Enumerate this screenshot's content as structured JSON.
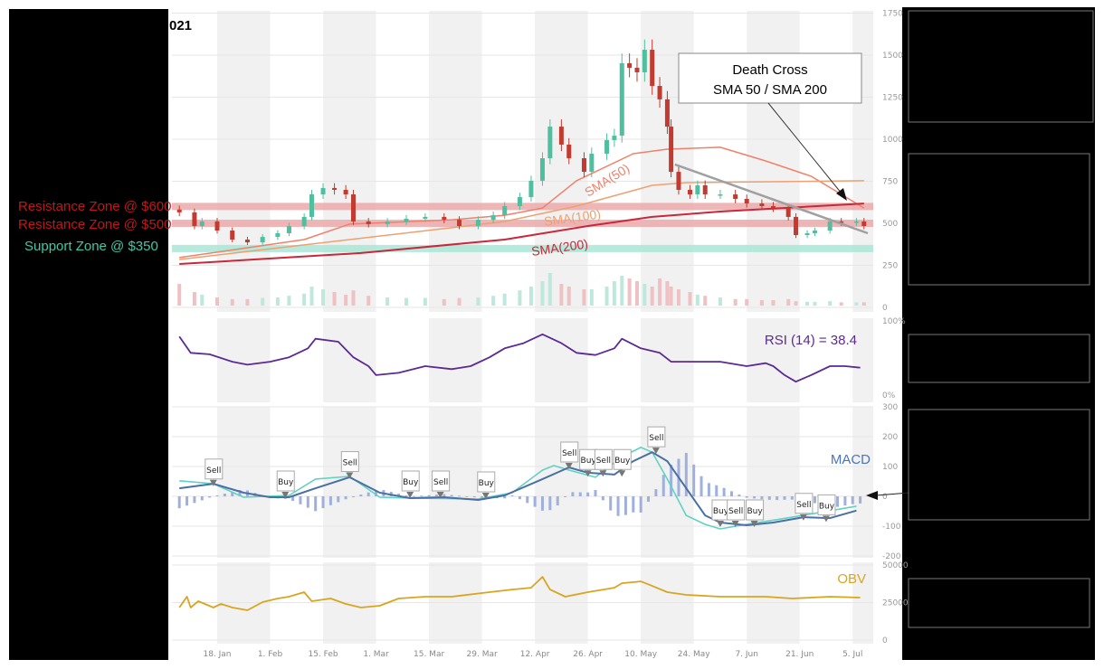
{
  "title": "021",
  "colors": {
    "up": "#4fbf9f",
    "down": "#c23a30",
    "resistance": "#c0161a",
    "support": "#3ec9a7",
    "sma50": "#f0806a",
    "sma100": "#eea070",
    "sma200": "#c8283a",
    "trend": "#a0a0a0",
    "rsi": "#5b2a93",
    "macd": "#4a6fa5",
    "signal": "#5fd3c0",
    "hist": "#9fb0dc",
    "obv": "#d9a520"
  },
  "annotations": {
    "resistance_600": "Resistance Zone @ $600",
    "resistance_500": "Resistance Zone @ $500",
    "support_350": "Support Zone @ $350",
    "death_cross_line1": "Death Cross",
    "death_cross_line2": "SMA 50 / SMA 200",
    "sma50_label": "SMA(50)",
    "sma100_label": "SMA(100)",
    "sma200_label": "SMA(200)",
    "rsi_label": "RSI (14) = 38.4",
    "macd_label": "MACD",
    "obv_label": "OBV"
  },
  "chart_data": [
    {
      "type": "candlestick",
      "panel": "price",
      "ylim": [
        0,
        1750
      ],
      "yticks": [
        "1750",
        "1500",
        "1250",
        "1000",
        "750",
        "500",
        "250",
        "0"
      ],
      "xticks": [
        "18. Jan",
        "1. Feb",
        "15. Feb",
        "1. Mar",
        "15. Mar",
        "29. Mar",
        "12. Apr",
        "26. Apr",
        "10. May",
        "24. May",
        "7. Jun",
        "21. Jun",
        "5. Jul"
      ],
      "xtick_dates": [
        "01-18",
        "02-01",
        "02-15",
        "03-01",
        "03-15",
        "03-29",
        "04-12",
        "04-26",
        "05-10",
        "05-24",
        "06-07",
        "06-21",
        "07-05"
      ],
      "grid": true,
      "close": [
        [
          "01-08",
          565
        ],
        [
          "01-12",
          484
        ],
        [
          "01-14",
          511
        ],
        [
          "01-18",
          457
        ],
        [
          "01-22",
          403
        ],
        [
          "01-26",
          387
        ],
        [
          "01-30",
          419
        ],
        [
          "02-03",
          441
        ],
        [
          "02-06",
          484
        ],
        [
          "02-10",
          538
        ],
        [
          "02-12",
          672
        ],
        [
          "02-15",
          710
        ],
        [
          "02-18",
          699
        ],
        [
          "02-21",
          672
        ],
        [
          "02-23",
          511
        ],
        [
          "02-27",
          495
        ],
        [
          "03-04",
          511
        ],
        [
          "03-09",
          527
        ],
        [
          "03-14",
          538
        ],
        [
          "03-19",
          521
        ],
        [
          "03-23",
          484
        ],
        [
          "03-28",
          521
        ],
        [
          "04-01",
          548
        ],
        [
          "04-04",
          602
        ],
        [
          "04-08",
          656
        ],
        [
          "04-11",
          753
        ],
        [
          "04-14",
          887
        ],
        [
          "04-16",
          1075
        ],
        [
          "04-19",
          968
        ],
        [
          "04-21",
          887
        ],
        [
          "04-25",
          806
        ],
        [
          "04-27",
          914
        ],
        [
          "05-01",
          995
        ],
        [
          "05-03",
          1021
        ],
        [
          "05-05",
          1452
        ],
        [
          "05-07",
          1425
        ],
        [
          "05-09",
          1398
        ],
        [
          "05-11",
          1532
        ],
        [
          "05-13",
          1317
        ],
        [
          "05-15",
          1237
        ],
        [
          "05-17",
          1075
        ],
        [
          "05-18",
          806
        ],
        [
          "05-20",
          699
        ],
        [
          "05-23",
          672
        ],
        [
          "05-25",
          726
        ],
        [
          "05-27",
          672
        ],
        [
          "05-31",
          672
        ],
        [
          "06-04",
          645
        ],
        [
          "06-07",
          618
        ],
        [
          "06-11",
          602
        ],
        [
          "06-14",
          591
        ],
        [
          "06-18",
          538
        ],
        [
          "06-20",
          430
        ],
        [
          "06-23",
          441
        ],
        [
          "06-25",
          457
        ],
        [
          "06-29",
          511
        ],
        [
          "07-02",
          505
        ],
        [
          "07-06",
          511
        ],
        [
          "07-08",
          484
        ]
      ],
      "volume": [
        40,
        25,
        20,
        15,
        12,
        12,
        14,
        15,
        18,
        22,
        35,
        30,
        25,
        20,
        28,
        18,
        15,
        14,
        14,
        12,
        14,
        15,
        18,
        22,
        28,
        35,
        45,
        60,
        40,
        35,
        30,
        30,
        35,
        45,
        55,
        50,
        45,
        40,
        35,
        50,
        45,
        35,
        30,
        25,
        20,
        18,
        15,
        12,
        12,
        10,
        10,
        12,
        8,
        7,
        7,
        8,
        6,
        6,
        6,
        6
      ],
      "zones": [
        {
          "label": "Resistance Zone @ $600",
          "value": 600,
          "kind": "resistance"
        },
        {
          "label": "Resistance Zone @ $500",
          "value": 500,
          "kind": "resistance"
        },
        {
          "label": "Support Zone @ $350",
          "value": 350,
          "kind": "support"
        }
      ],
      "series": [
        {
          "name": "SMA(50)",
          "points": [
            [
              "01-08",
              296
            ],
            [
              "02-10",
              403
            ],
            [
              "02-22",
              495
            ],
            [
              "03-21",
              521
            ],
            [
              "04-04",
              548
            ],
            [
              "04-14",
              591
            ],
            [
              "04-23",
              753
            ],
            [
              "05-08",
              914
            ],
            [
              "05-17",
              941
            ],
            [
              "05-31",
              952
            ],
            [
              "06-12",
              871
            ],
            [
              "06-24",
              780
            ],
            [
              "07-02",
              672
            ],
            [
              "07-08",
              591
            ]
          ]
        },
        {
          "name": "SMA(100)",
          "points": [
            [
              "01-08",
              285
            ],
            [
              "02-22",
              403
            ],
            [
              "04-04",
              511
            ],
            [
              "04-23",
              602
            ],
            [
              "05-13",
              726
            ],
            [
              "05-22",
              742
            ],
            [
              "07-08",
              753
            ]
          ]
        },
        {
          "name": "SMA(200)",
          "points": [
            [
              "01-08",
              258
            ],
            [
              "02-25",
              323
            ],
            [
              "04-04",
              403
            ],
            [
              "04-26",
              484
            ],
            [
              "05-13",
              538
            ],
            [
              "05-31",
              570
            ],
            [
              "07-08",
              618
            ]
          ]
        }
      ],
      "trendline": [
        [
          "05-19",
          850
        ],
        [
          "07-09",
          441
        ]
      ]
    },
    {
      "type": "line",
      "panel": "rsi",
      "ylim": [
        0,
        100
      ],
      "yticks": [
        "100%",
        "0%"
      ],
      "series": [
        {
          "name": "RSI (14)",
          "points": [
            [
              "01-08",
              79
            ],
            [
              "01-11",
              57
            ],
            [
              "01-16",
              55
            ],
            [
              "01-22",
              45
            ],
            [
              "01-26",
              41
            ],
            [
              "02-01",
              45
            ],
            [
              "02-06",
              51
            ],
            [
              "02-11",
              63
            ],
            [
              "02-13",
              76
            ],
            [
              "02-19",
              72
            ],
            [
              "02-23",
              51
            ],
            [
              "02-27",
              39
            ],
            [
              "03-01",
              27
            ],
            [
              "03-07",
              30
            ],
            [
              "03-14",
              39
            ],
            [
              "03-21",
              35
            ],
            [
              "03-26",
              39
            ],
            [
              "03-31",
              51
            ],
            [
              "04-04",
              63
            ],
            [
              "04-09",
              70
            ],
            [
              "04-14",
              82
            ],
            [
              "04-19",
              70
            ],
            [
              "04-23",
              57
            ],
            [
              "04-28",
              54
            ],
            [
              "05-03",
              63
            ],
            [
              "05-05",
              76
            ],
            [
              "05-10",
              63
            ],
            [
              "05-15",
              57
            ],
            [
              "05-18",
              45
            ],
            [
              "05-22",
              45
            ],
            [
              "05-31",
              45
            ],
            [
              "06-07",
              39
            ],
            [
              "06-12",
              43
            ],
            [
              "06-14",
              39
            ],
            [
              "06-17",
              27
            ],
            [
              "06-20",
              18
            ],
            [
              "06-24",
              27
            ],
            [
              "06-29",
              39
            ],
            [
              "07-03",
              39
            ],
            [
              "07-07",
              37
            ]
          ]
        }
      ]
    },
    {
      "type": "line",
      "panel": "macd",
      "ylim": [
        -200,
        300
      ],
      "yticks": [
        "300",
        "200",
        "100",
        "0",
        "-100",
        "-200"
      ],
      "series": [
        {
          "name": "MACD",
          "points": [
            [
              "01-08",
              27
            ],
            [
              "01-17",
              42
            ],
            [
              "01-25",
              12
            ],
            [
              "02-01",
              -3
            ],
            [
              "02-06",
              -3
            ],
            [
              "02-13",
              27
            ],
            [
              "02-22",
              64
            ],
            [
              "03-02",
              12
            ],
            [
              "03-10",
              -6
            ],
            [
              "03-19",
              -3
            ],
            [
              "03-28",
              -12
            ],
            [
              "04-04",
              3
            ],
            [
              "04-14",
              58
            ],
            [
              "04-21",
              97
            ],
            [
              "04-26",
              79
            ],
            [
              "05-03",
              73
            ],
            [
              "05-08",
              118
            ],
            [
              "05-13",
              148
            ],
            [
              "05-17",
              118
            ],
            [
              "05-22",
              27
            ],
            [
              "05-27",
              -64
            ],
            [
              "05-31",
              -88
            ],
            [
              "06-07",
              -97
            ],
            [
              "06-14",
              -88
            ],
            [
              "06-22",
              -70
            ],
            [
              "06-29",
              -73
            ],
            [
              "07-06",
              -48
            ]
          ]
        },
        {
          "points": [
            [
              "01-08",
              52
            ],
            [
              "01-17",
              42
            ],
            [
              "01-25",
              -3
            ],
            [
              "02-06",
              3
            ],
            [
              "02-13",
              58
            ],
            [
              "02-22",
              67
            ],
            [
              "03-02",
              -3
            ],
            [
              "03-10",
              -6
            ],
            [
              "03-28",
              -9
            ],
            [
              "04-06",
              12
            ],
            [
              "04-14",
              88
            ],
            [
              "04-17",
              103
            ],
            [
              "04-21",
              88
            ],
            [
              "04-28",
              64
            ],
            [
              "05-05",
              133
            ],
            [
              "05-10",
              164
            ],
            [
              "05-13",
              148
            ],
            [
              "05-17",
              58
            ],
            [
              "05-22",
              -64
            ],
            [
              "05-27",
              -94
            ],
            [
              "05-31",
              -109
            ],
            [
              "06-07",
              -94
            ],
            [
              "06-19",
              -70
            ],
            [
              "07-06",
              -33
            ]
          ]
        }
      ],
      "signals": [
        [
          "01-17",
          "Sell",
          40
        ],
        [
          "02-05",
          "Buy",
          0
        ],
        [
          "02-22",
          "Sell",
          65
        ],
        [
          "03-10",
          "Buy",
          0
        ],
        [
          "03-18",
          "Sell",
          0
        ],
        [
          "03-30",
          "Buy",
          -3
        ],
        [
          "04-21",
          "Sell",
          97
        ],
        [
          "04-26",
          "Buy",
          72
        ],
        [
          "04-30",
          "Sell",
          72
        ],
        [
          "05-05",
          "Buy",
          72
        ],
        [
          "05-14",
          "Sell",
          148
        ],
        [
          "05-31",
          "Buy",
          -97
        ],
        [
          "06-04",
          "Sell",
          -97
        ],
        [
          "06-09",
          "Buy",
          -97
        ],
        [
          "06-22",
          "Sell",
          -75
        ],
        [
          "06-28",
          "Buy",
          -80
        ]
      ]
    },
    {
      "type": "line",
      "panel": "obv",
      "ylim": [
        0,
        50000
      ],
      "yticks": [
        "50000",
        "25000",
        "0"
      ],
      "series": [
        {
          "name": "OBV",
          "points": [
            [
              "01-08",
              21700
            ],
            [
              "01-10",
              28900
            ],
            [
              "01-11",
              21700
            ],
            [
              "01-13",
              25900
            ],
            [
              "01-17",
              21700
            ],
            [
              "01-19",
              24100
            ],
            [
              "01-22",
              21700
            ],
            [
              "01-26",
              19900
            ],
            [
              "01-30",
              25300
            ],
            [
              "02-03",
              27700
            ],
            [
              "02-06",
              28900
            ],
            [
              "02-10",
              31900
            ],
            [
              "02-12",
              25900
            ],
            [
              "02-17",
              27700
            ],
            [
              "02-21",
              24100
            ],
            [
              "02-25",
              21700
            ],
            [
              "03-02",
              22900
            ],
            [
              "03-07",
              27700
            ],
            [
              "03-14",
              28900
            ],
            [
              "03-21",
              28900
            ],
            [
              "03-31",
              31900
            ],
            [
              "04-06",
              33700
            ],
            [
              "04-11",
              34900
            ],
            [
              "04-14",
              42100
            ],
            [
              "04-16",
              33700
            ],
            [
              "04-20",
              28900
            ],
            [
              "04-26",
              31900
            ],
            [
              "05-03",
              34900
            ],
            [
              "05-05",
              37900
            ],
            [
              "05-10",
              39100
            ],
            [
              "05-13",
              36100
            ],
            [
              "05-17",
              31900
            ],
            [
              "05-22",
              30100
            ],
            [
              "05-31",
              28900
            ],
            [
              "06-12",
              28900
            ],
            [
              "06-19",
              27700
            ],
            [
              "06-29",
              28900
            ],
            [
              "07-07",
              28300
            ]
          ]
        }
      ]
    }
  ]
}
